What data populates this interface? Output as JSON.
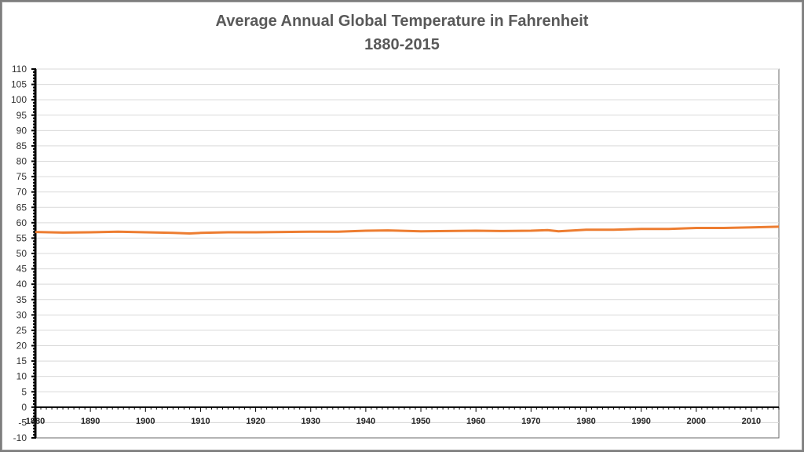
{
  "chart_data": {
    "type": "line",
    "title": "Average Annual Global Temperature in Fahrenheit",
    "subtitle": "1880-2015",
    "xlabel": "",
    "ylabel": "",
    "ylim": [
      -10,
      110
    ],
    "xlim": [
      1880,
      2015
    ],
    "y_ticks": [
      -10,
      -5,
      0,
      5,
      10,
      15,
      20,
      25,
      30,
      35,
      40,
      45,
      50,
      55,
      60,
      65,
      70,
      75,
      80,
      85,
      90,
      95,
      100,
      105,
      110
    ],
    "x_ticks": [
      1880,
      1890,
      1900,
      1910,
      1920,
      1930,
      1940,
      1950,
      1960,
      1970,
      1980,
      1990,
      2000,
      2010
    ],
    "grid": true,
    "legend": "none",
    "line_color": "#ed7d31",
    "series": [
      {
        "x": [
          1880,
          1885,
          1890,
          1895,
          1900,
          1905,
          1908,
          1910,
          1915,
          1920,
          1925,
          1930,
          1935,
          1940,
          1944,
          1950,
          1955,
          1960,
          1965,
          1970,
          1973,
          1975,
          1980,
          1985,
          1990,
          1995,
          2000,
          2005,
          2010,
          2015
        ],
        "values": [
          57.0,
          56.8,
          56.9,
          57.1,
          56.9,
          56.7,
          56.5,
          56.7,
          56.9,
          56.9,
          57.0,
          57.1,
          57.1,
          57.4,
          57.5,
          57.2,
          57.3,
          57.4,
          57.3,
          57.4,
          57.6,
          57.2,
          57.7,
          57.7,
          58.0,
          58.0,
          58.3,
          58.3,
          58.5,
          58.7
        ]
      }
    ]
  }
}
